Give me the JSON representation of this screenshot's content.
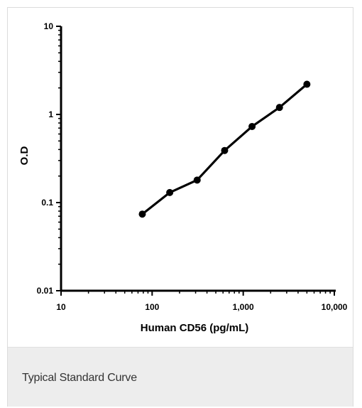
{
  "chart_data": {
    "type": "line",
    "title": "",
    "xlabel": "Human CD56 (pg/mL)",
    "ylabel": "O.D",
    "xscale": "log",
    "yscale": "log",
    "xlim": [
      10,
      10000
    ],
    "ylim": [
      0.01,
      10
    ],
    "xticks": [
      {
        "value": 10,
        "label": "10"
      },
      {
        "value": 100,
        "label": "100"
      },
      {
        "value": 1000,
        "label": "1,000"
      },
      {
        "value": 10000,
        "label": "10,000"
      }
    ],
    "yticks": [
      {
        "value": 0.01,
        "label": "0.01"
      },
      {
        "value": 0.1,
        "label": "0.1"
      },
      {
        "value": 1,
        "label": "1"
      },
      {
        "value": 10,
        "label": "10"
      }
    ],
    "grid": false,
    "legend": "none",
    "series": [
      {
        "x": [
          78,
          156,
          312,
          625,
          1250,
          2500,
          5000
        ],
        "y": [
          0.074,
          0.13,
          0.18,
          0.39,
          0.73,
          1.2,
          2.2
        ]
      }
    ],
    "color": "#000000"
  },
  "caption": "Typical Standard Curve"
}
